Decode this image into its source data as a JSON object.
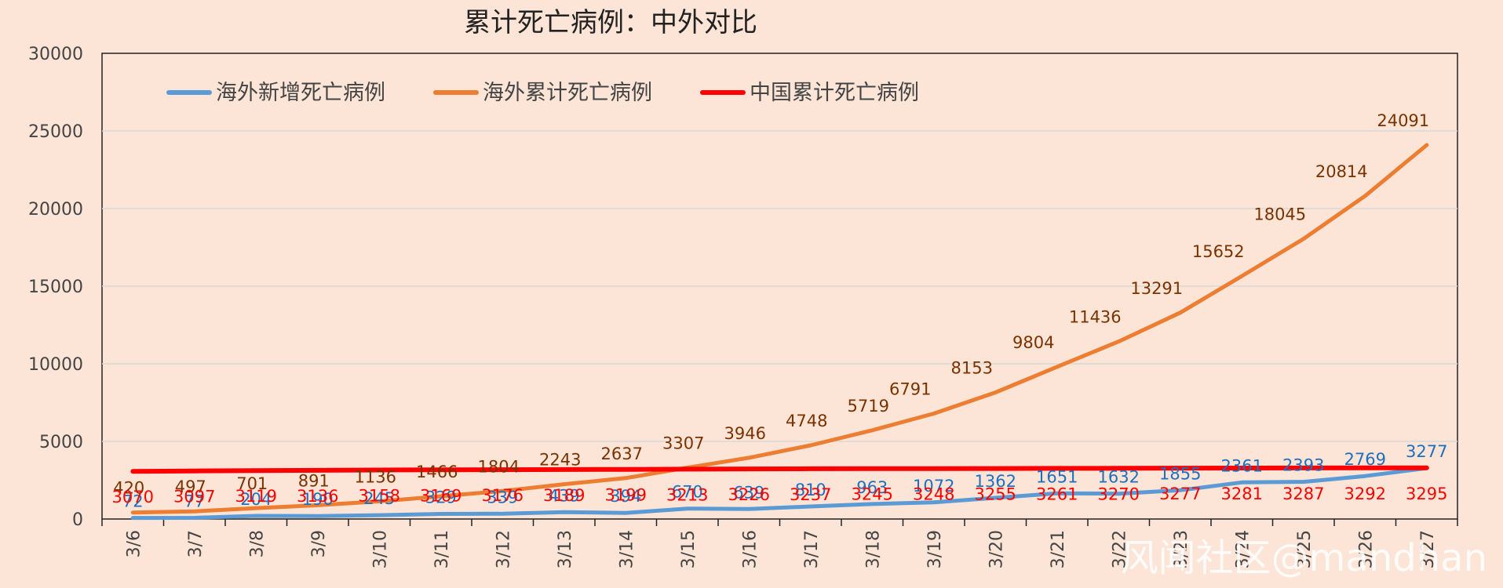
{
  "chart_data": {
    "type": "line",
    "title": "累计死亡病例：中外对比",
    "categories": [
      "3/6",
      "3/7",
      "3/8",
      "3/9",
      "3/10",
      "3/11",
      "3/12",
      "3/13",
      "3/14",
      "3/15",
      "3/16",
      "3/17",
      "3/18",
      "3/19",
      "3/20",
      "3/21",
      "3/22",
      "3/23",
      "3/24",
      "3/25",
      "3/26",
      "3/27"
    ],
    "ylim": [
      0,
      30000
    ],
    "yticks": [
      "0",
      "5000",
      "10000",
      "15000",
      "20000",
      "25000",
      "30000"
    ],
    "grid": true,
    "legend_position": "top-left",
    "series": [
      {
        "name": "海外新增死亡病例",
        "color": "#5b9bd5",
        "label_color": "#1f6fbf",
        "values": [
          72,
          77,
          204,
          190,
          245,
          329,
          339,
          439,
          394,
          670,
          639,
          810,
          963,
          1072,
          1362,
          1651,
          1632,
          1855,
          2361,
          2393,
          2769,
          3277
        ]
      },
      {
        "name": "海外累计死亡病例",
        "color": "#ed7d31",
        "label_color": "#7a3200",
        "values": [
          420,
          497,
          701,
          891,
          1136,
          1466,
          1804,
          2243,
          2637,
          3307,
          3946,
          4748,
          5719,
          6791,
          8153,
          9804,
          11436,
          13291,
          15652,
          18045,
          20814,
          24091
        ]
      },
      {
        "name": "中国累计死亡病例",
        "color": "#ff0000",
        "label_color": "#ff0000",
        "values": [
          3070,
          3097,
          3119,
          3136,
          3158,
          3169,
          3176,
          3189,
          3199,
          3213,
          3226,
          3237,
          3245,
          3248,
          3255,
          3261,
          3270,
          3277,
          3281,
          3287,
          3292,
          3295
        ]
      }
    ]
  },
  "watermark": "风闻社区@mandhan"
}
